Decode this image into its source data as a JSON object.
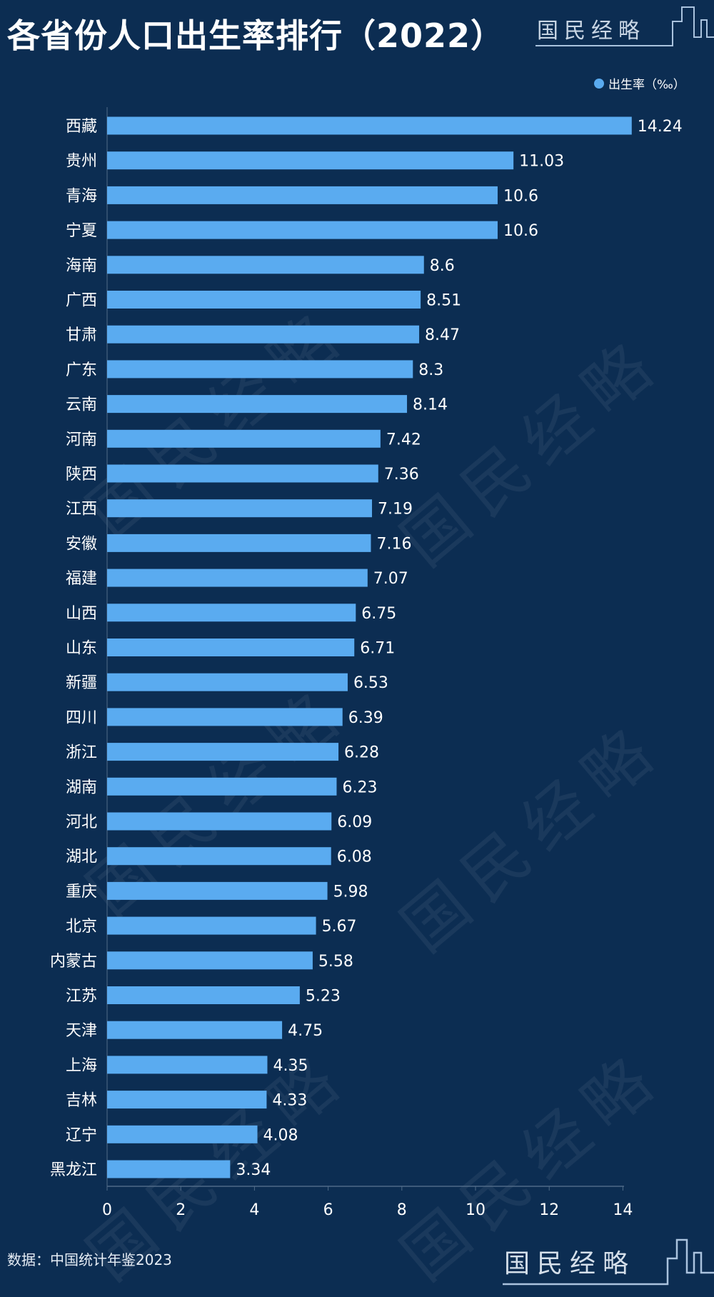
{
  "title": "各省份人口出生率排行（2022）",
  "logo_text": "国民经略",
  "source": "数据：中国统计年鉴2023",
  "colors": {
    "background": "#0c2d52",
    "bar": "#5aabf0"
  },
  "chart_data": {
    "type": "bar",
    "orientation": "horizontal",
    "title": "各省份人口出生率排行（2022）",
    "legend": {
      "label": "出生率（‰）",
      "placement": "top-right"
    },
    "categories": [
      "西藏",
      "贵州",
      "青海",
      "宁夏",
      "海南",
      "广西",
      "甘肃",
      "广东",
      "云南",
      "河南",
      "陕西",
      "江西",
      "安徽",
      "福建",
      "山西",
      "山东",
      "新疆",
      "四川",
      "浙江",
      "湖南",
      "河北",
      "湖北",
      "重庆",
      "北京",
      "内蒙古",
      "江苏",
      "天津",
      "上海",
      "吉林",
      "辽宁",
      "黑龙江"
    ],
    "series": [
      {
        "name": "出生率（‰）",
        "values": [
          14.24,
          11.03,
          10.6,
          10.6,
          8.6,
          8.51,
          8.47,
          8.3,
          8.14,
          7.42,
          7.36,
          7.19,
          7.16,
          7.07,
          6.75,
          6.71,
          6.53,
          6.39,
          6.28,
          6.23,
          6.09,
          6.08,
          5.98,
          5.67,
          5.58,
          5.23,
          4.75,
          4.35,
          4.33,
          4.08,
          3.34
        ]
      }
    ],
    "xlim": [
      0,
      15
    ],
    "xticks": [
      0,
      2,
      4,
      6,
      8,
      10,
      12,
      14
    ],
    "grid": false,
    "data_labels": true
  }
}
